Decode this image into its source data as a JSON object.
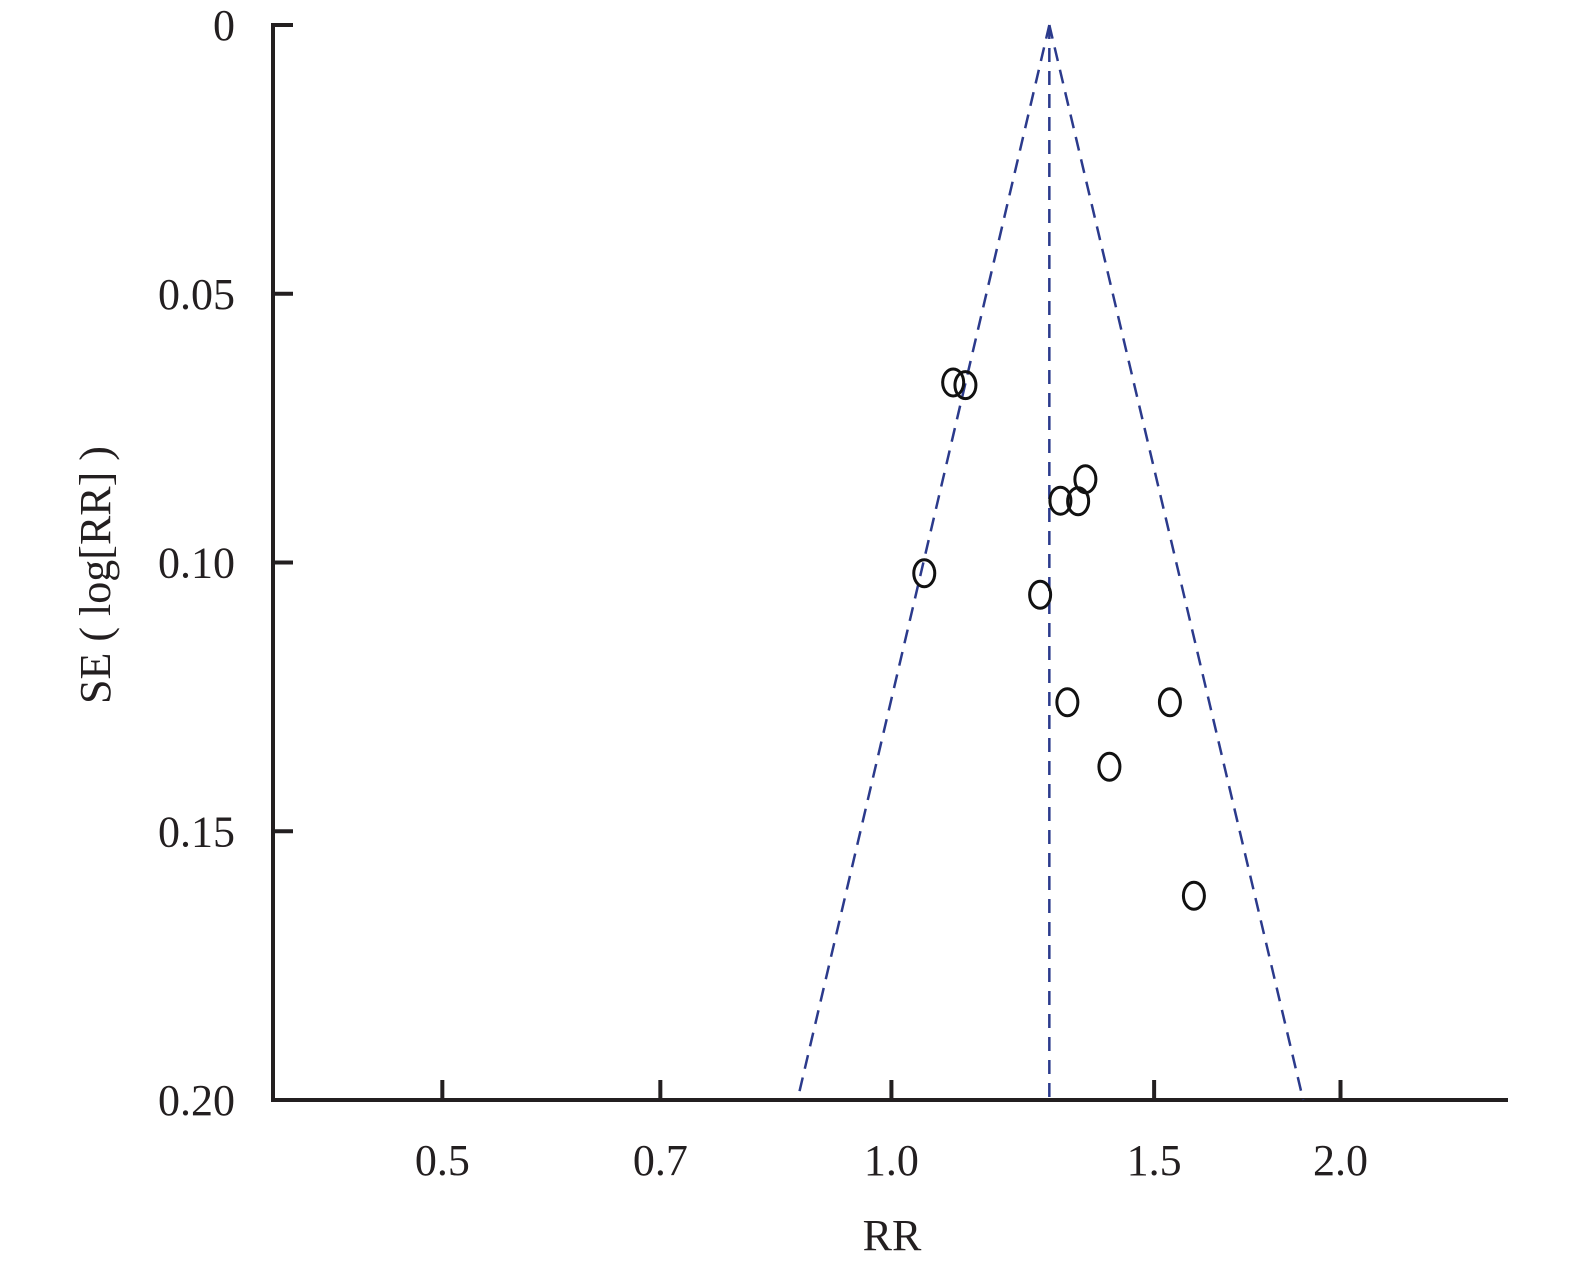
{
  "chart_data": {
    "type": "scatter",
    "x_label": "RR",
    "y_label": "SE ( log[RR] )",
    "x_log": true,
    "y_inverted": true,
    "xlim": [
      0.385,
      2.59
    ],
    "ylim": [
      0,
      0.2
    ],
    "xticks": [
      0.5,
      0.7,
      {
        "value": 1.0,
        "label": "1.0"
      },
      1.5,
      {
        "value": 2.0,
        "label": "2.0"
      }
    ],
    "yticks": [
      0,
      0.05,
      {
        "value": 0.1,
        "label": "0.10"
      },
      0.15,
      {
        "value": 0.2,
        "label": "0.20"
      }
    ],
    "series": [
      {
        "color": "#111111",
        "x": [
          1.1,
          1.121,
          1.349,
          1.298,
          1.334,
          1.052,
          1.258,
          1.312,
          1.537,
          1.4,
          1.595
        ],
        "values": [
          0.0665,
          0.067,
          0.0845,
          0.0885,
          0.0886,
          0.102,
          0.106,
          0.126,
          0.126,
          0.138,
          0.162
        ]
      }
    ],
    "lines": [
      {
        "color": "#2b3a8c",
        "x": [
          1.276,
          0.865
        ],
        "values": [
          0,
          0.2
        ]
      },
      {
        "color": "#2b3a8c",
        "x": [
          1.276,
          1.276
        ],
        "values": [
          0,
          0.2
        ]
      },
      {
        "color": "#2b3a8c",
        "x": [
          1.276,
          1.888
        ],
        "values": [
          0,
          0.2
        ]
      }
    ]
  }
}
